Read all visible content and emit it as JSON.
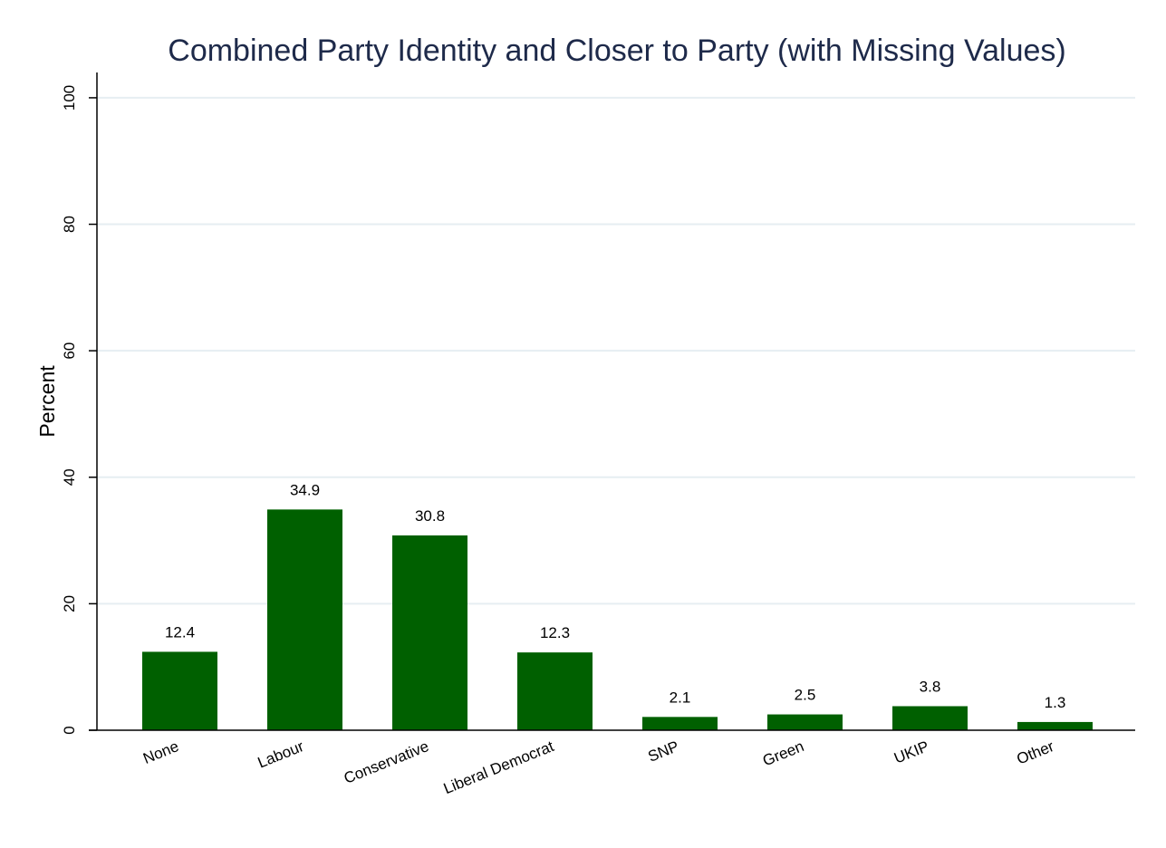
{
  "chart_data": {
    "type": "bar",
    "title": "Combined Party Identity and Closer to Party (with Missing Values)",
    "xlabel": "",
    "ylabel": "Percent",
    "ylim": [
      0,
      104
    ],
    "yticks": [
      0,
      20,
      40,
      60,
      80,
      100
    ],
    "categories": [
      "None",
      "Labour",
      "Conservative",
      "Liberal Democrat",
      "SNP",
      "Green",
      "UKIP",
      "Other"
    ],
    "values": [
      12.4,
      34.9,
      30.8,
      12.3,
      2.1,
      2.5,
      3.8,
      1.3
    ],
    "value_labels": [
      "12.4",
      "34.9",
      "30.8",
      "12.3",
      "2.1",
      "2.5",
      "3.8",
      "1.3"
    ],
    "grid": true,
    "legend": "none",
    "colors": {
      "bar": "#006000",
      "grid": "#e6eef2",
      "axis": "#000000",
      "title": "#1e2a4a"
    }
  }
}
